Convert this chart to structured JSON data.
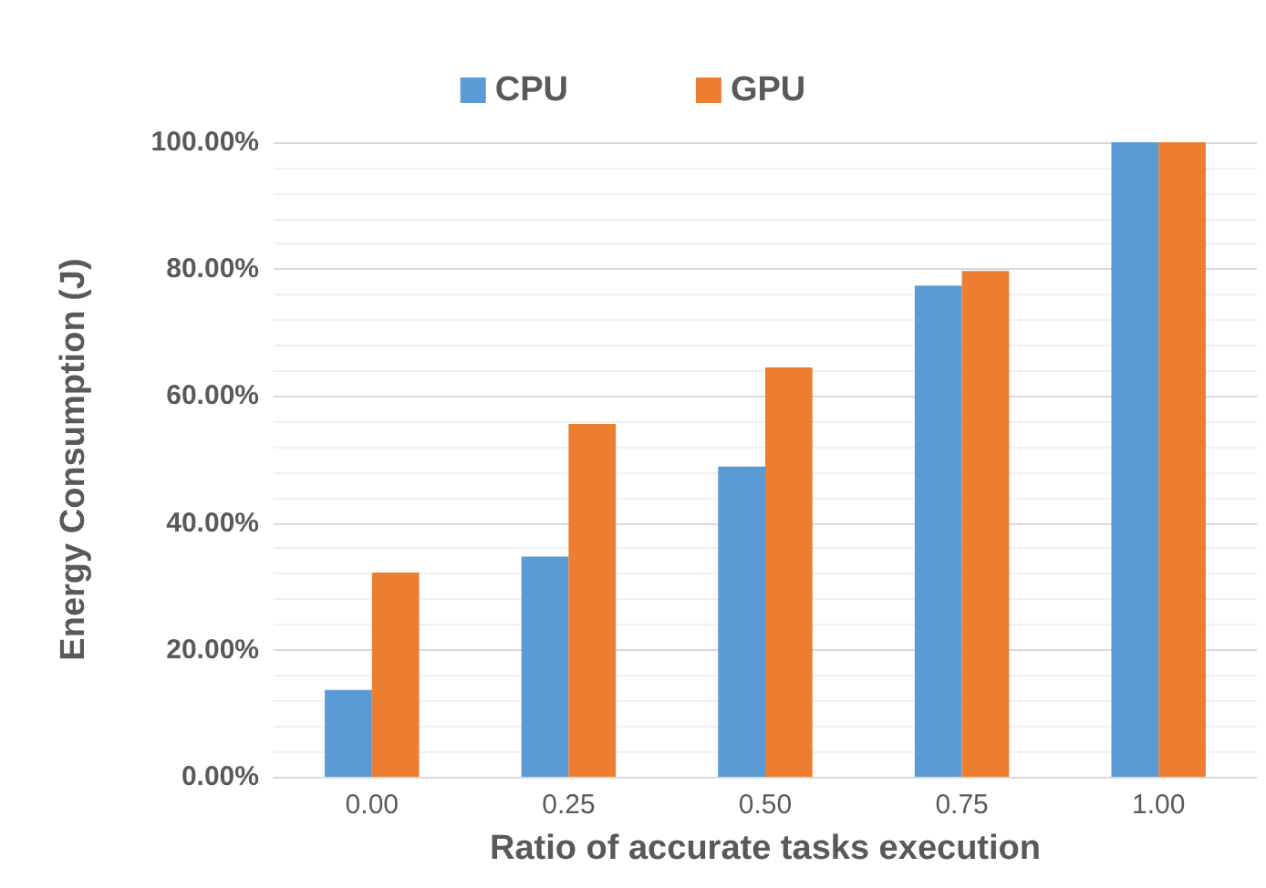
{
  "chart_data": {
    "type": "bar",
    "xlabel": "Ratio of accurate tasks execution",
    "ylabel": "Energy Consumption (J)",
    "categories": [
      "0.00",
      "0.25",
      "0.50",
      "0.75",
      "1.00"
    ],
    "series": [
      {
        "name": "CPU",
        "color": "#5b9bd5",
        "values": [
          13.7,
          34.7,
          48.9,
          77.4,
          100
        ]
      },
      {
        "name": "GPU",
        "color": "#ed7d31",
        "values": [
          32.2,
          55.6,
          64.5,
          79.7,
          100
        ]
      }
    ],
    "ylim": [
      0,
      100
    ],
    "yticks": [
      {
        "value": 0,
        "label": "0.00%"
      },
      {
        "value": 20,
        "label": "20.00%"
      },
      {
        "value": 40,
        "label": "40.00%"
      },
      {
        "value": 60,
        "label": "60.00%"
      },
      {
        "value": 80,
        "label": "80.00%"
      },
      {
        "value": 100,
        "label": "100.00%"
      }
    ],
    "grid": true,
    "legend": "top"
  }
}
